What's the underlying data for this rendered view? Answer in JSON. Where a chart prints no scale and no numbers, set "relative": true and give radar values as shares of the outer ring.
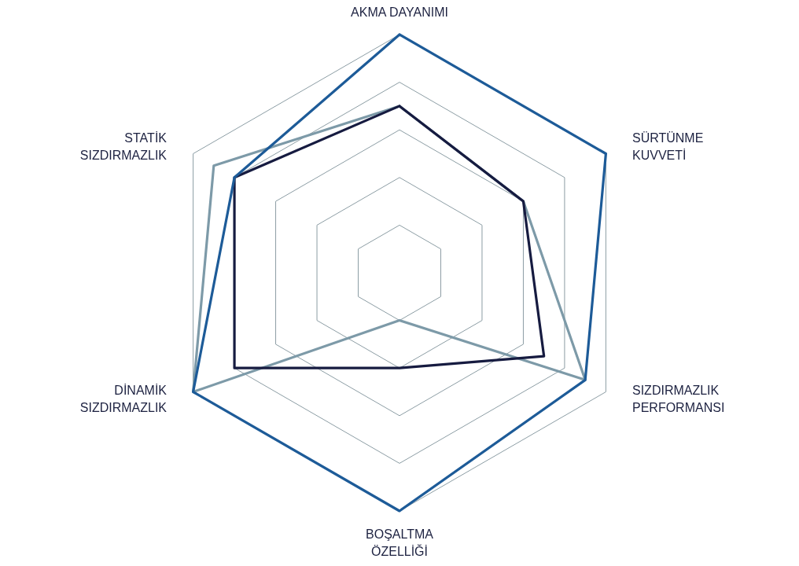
{
  "chart_data": {
    "type": "radar",
    "relative": true,
    "categories": [
      "AKMA DAYANIMI",
      "SÜRTÜNME\nKUVVETİ",
      "SIZDIRMAZLIK\nPERFORMANSI",
      "BOŞALTMA\nÖZELLİĞİ",
      "DİNAMİK\nSIZDIRMAZLIK",
      "STATİK\nSIZDIRMAZLIK"
    ],
    "series": [
      {
        "color": "#7d9aa8",
        "values": [
          0.7,
          0.6,
          0.9,
          0.2,
          1,
          0.9
        ]
      },
      {
        "color": "#161b40",
        "values": [
          0.7,
          0.6,
          0.7,
          0.4,
          0.8,
          0.8
        ]
      },
      {
        "color": "#1d5b98",
        "values": [
          1,
          1,
          0.9,
          1,
          1,
          0.8
        ]
      }
    ],
    "grid": true,
    "marker": "none",
    "line_style": "solid"
  }
}
